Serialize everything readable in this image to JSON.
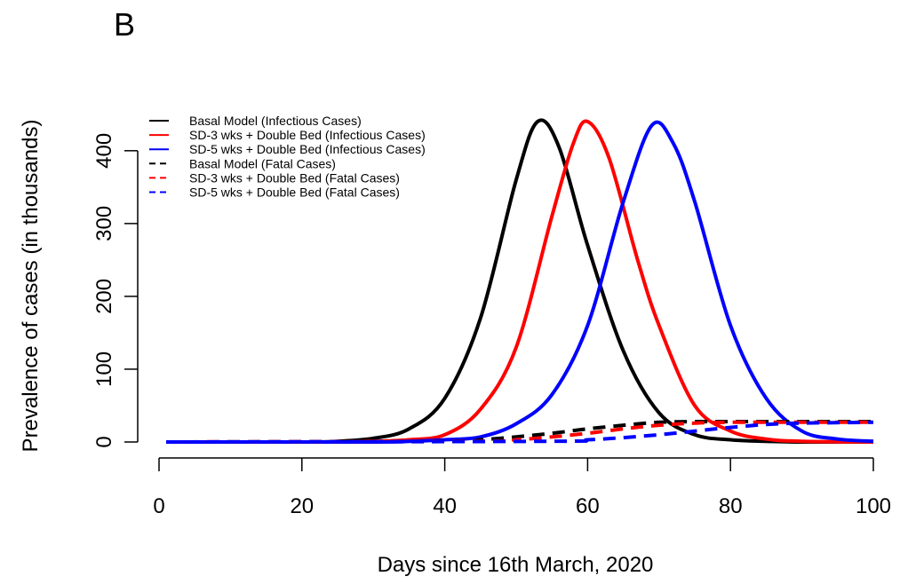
{
  "panel_label": "B",
  "chart_data": {
    "type": "line",
    "xlabel": "Days since 16th March, 2020",
    "ylabel": "Prevalence of cases (in thousands)",
    "xlim": [
      0,
      100
    ],
    "ylim": [
      0,
      440
    ],
    "xticks": [
      0,
      20,
      40,
      60,
      80,
      100
    ],
    "yticks": [
      0,
      100,
      200,
      300,
      400
    ],
    "grid": false,
    "legend_position": "top-left",
    "series": [
      {
        "name": "Basal Model (Infectious Cases)",
        "color": "#000000",
        "dash": "solid",
        "x": [
          1,
          20,
          25,
          30,
          35,
          40,
          45,
          50,
          53,
          56,
          60,
          65,
          70,
          75,
          80,
          85,
          90,
          100
        ],
        "y": [
          0,
          0,
          1,
          5,
          18,
          60,
          170,
          360,
          440,
          405,
          270,
          125,
          40,
          10,
          3,
          1,
          0,
          0
        ]
      },
      {
        "name": "SD-3 wks + Double Bed (Infectious Cases)",
        "color": "#ff0000",
        "dash": "solid",
        "x": [
          1,
          25,
          30,
          35,
          40,
          45,
          50,
          55,
          58,
          60,
          63,
          67,
          70,
          75,
          80,
          85,
          90,
          100
        ],
        "y": [
          0,
          0,
          1,
          3,
          10,
          45,
          130,
          310,
          410,
          440,
          390,
          250,
          160,
          50,
          15,
          4,
          1,
          0
        ]
      },
      {
        "name": "SD-5 wks + Double Bed (Infectious Cases)",
        "color": "#0000ff",
        "dash": "solid",
        "x": [
          1,
          30,
          35,
          40,
          45,
          50,
          55,
          60,
          65,
          69,
          72,
          75,
          80,
          85,
          90,
          95,
          100
        ],
        "y": [
          0,
          0,
          1,
          3,
          7,
          25,
          65,
          160,
          330,
          435,
          410,
          330,
          160,
          60,
          15,
          4,
          1
        ]
      },
      {
        "name": "Basal Model (Fatal Cases)",
        "color": "#000000",
        "dash": "dashed",
        "x": [
          1,
          40,
          45,
          50,
          55,
          60,
          65,
          70,
          75,
          80,
          90,
          100
        ],
        "y": [
          0,
          1,
          3,
          7,
          12,
          18,
          23,
          27,
          28,
          28,
          28,
          28
        ]
      },
      {
        "name": "SD-3 wks + Double Bed (Fatal Cases)",
        "color": "#ff0000",
        "dash": "dashed",
        "x": [
          1,
          45,
          50,
          55,
          60,
          65,
          70,
          75,
          80,
          90,
          100
        ],
        "y": [
          0,
          1,
          3,
          7,
          12,
          18,
          23,
          26,
          27,
          27,
          27
        ]
      },
      {
        "name": "SD-5 wks + Double Bed (Fatal Cases)",
        "color": "#0000ff",
        "dash": "dashed",
        "x": [
          1,
          55,
          60,
          65,
          70,
          75,
          80,
          85,
          90,
          100
        ],
        "y": [
          0,
          1,
          3,
          6,
          10,
          15,
          20,
          24,
          26,
          27
        ]
      }
    ]
  }
}
